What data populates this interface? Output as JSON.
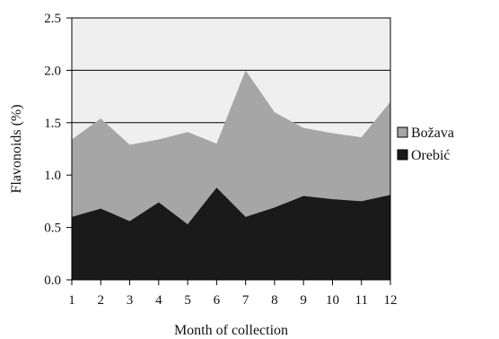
{
  "chart_data": {
    "type": "area",
    "stacking": "overlapping",
    "title": "",
    "xlabel": "Month of collection",
    "ylabel": "Flavonoids (%)",
    "x": [
      1,
      2,
      3,
      4,
      5,
      6,
      7,
      8,
      9,
      10,
      11,
      12
    ],
    "xticks": [
      "1",
      "2",
      "3",
      "4",
      "5",
      "6",
      "7",
      "8",
      "9",
      "10",
      "11",
      "12"
    ],
    "xlim": [
      1,
      12
    ],
    "ylim": [
      0.0,
      2.5
    ],
    "yticks": [
      "0.0",
      "0.5",
      "1.0",
      "1.5",
      "2.0",
      "2.5"
    ],
    "ytick_values": [
      0.0,
      0.5,
      1.0,
      1.5,
      2.0,
      2.5
    ],
    "grid": "horizontal",
    "legend_position": "right",
    "plot_background": "#efefef",
    "series": [
      {
        "name": "Božava",
        "color": "#a6a6a6",
        "values": [
          1.34,
          1.54,
          1.29,
          1.34,
          1.41,
          1.3,
          2.0,
          1.6,
          1.45,
          1.4,
          1.36,
          1.7
        ]
      },
      {
        "name": "Orebić",
        "color": "#1a1a1a",
        "values": [
          0.6,
          0.68,
          0.56,
          0.74,
          0.53,
          0.88,
          0.6,
          0.69,
          0.8,
          0.77,
          0.75,
          0.81
        ]
      }
    ]
  }
}
